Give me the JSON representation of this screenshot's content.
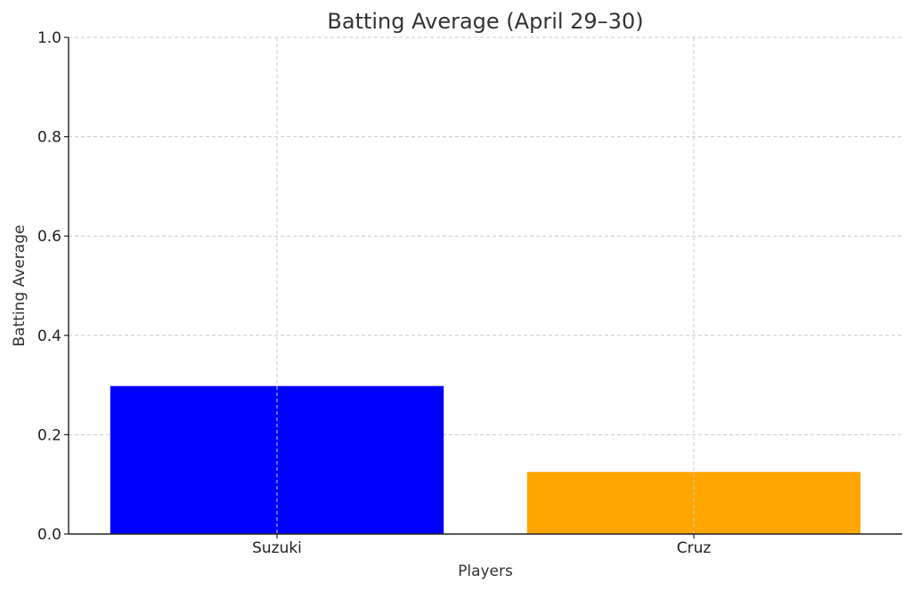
{
  "chart_data": {
    "type": "bar",
    "title": "Batting Average (April 29–30)",
    "xlabel": "Players",
    "ylabel": "Batting Average",
    "categories": [
      "Suzuki",
      "Cruz"
    ],
    "values": [
      0.298,
      0.125
    ],
    "colors": [
      "#0000ff",
      "#ffa500"
    ],
    "ylim": [
      0,
      1.0
    ],
    "yticks": [
      "0.0",
      "0.2",
      "0.4",
      "0.6",
      "0.8",
      "1.0"
    ],
    "grid": true
  }
}
